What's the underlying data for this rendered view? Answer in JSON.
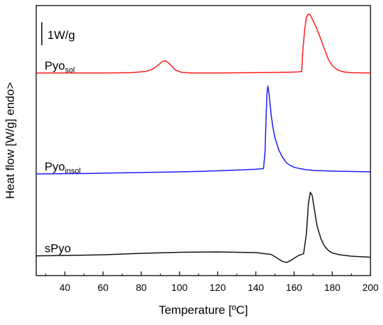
{
  "chart_data": {
    "type": "line",
    "xlabel": "Temperature [ºC]",
    "ylabel": "Heat flow [W/g]  endo>",
    "xlim": [
      25,
      200
    ],
    "xticks": [
      40,
      60,
      80,
      100,
      120,
      140,
      160,
      180,
      200
    ],
    "ylim": [
      0,
      7.65
    ],
    "scale_bar": {
      "label": "1W/g",
      "value": 1
    },
    "y_ticks_shown": false,
    "grid": false,
    "legend": "none",
    "series": [
      {
        "name": "Pyosol",
        "label_main": "Pyo",
        "label_sub": "sol",
        "color": "#ff1a1a",
        "x": [
          25,
          40,
          60,
          75,
          82,
          86,
          89,
          91,
          92.5,
          94,
          96,
          98,
          101,
          106,
          120,
          140,
          155,
          162,
          164,
          164.5,
          165.5,
          166.5,
          167.5,
          168.5,
          170,
          172,
          174,
          176,
          178,
          180,
          183,
          186,
          190,
          200
        ],
        "y": [
          5.74,
          5.74,
          5.74,
          5.75,
          5.78,
          5.85,
          5.97,
          6.06,
          6.09,
          6.04,
          5.93,
          5.82,
          5.76,
          5.74,
          5.74,
          5.75,
          5.76,
          5.77,
          5.78,
          6.3,
          6.95,
          7.32,
          7.41,
          7.38,
          7.22,
          6.98,
          6.7,
          6.4,
          6.12,
          5.95,
          5.82,
          5.77,
          5.75,
          5.74
        ]
      },
      {
        "name": "Pyoinsol",
        "label_main": "Pyo",
        "label_sub": "insol",
        "color": "#1a1aff",
        "x": [
          25,
          50,
          80,
          110,
          130,
          140,
          144,
          144.8,
          145.3,
          145.8,
          146.3,
          147,
          148,
          149,
          150,
          152,
          154,
          156,
          158,
          160,
          163,
          166,
          170,
          180,
          190,
          200
        ],
        "y": [
          2.88,
          2.89,
          2.92,
          2.95,
          2.99,
          3.01,
          3.03,
          3.5,
          4.4,
          5.15,
          5.37,
          5.1,
          4.55,
          4.18,
          3.9,
          3.56,
          3.35,
          3.2,
          3.12,
          3.07,
          3.03,
          3.0,
          2.98,
          2.96,
          2.95,
          2.94
        ]
      },
      {
        "name": "sPyo",
        "label_main": "sPyo",
        "label_sub": "",
        "color": "#111111",
        "x": [
          25,
          40,
          60,
          80,
          100,
          120,
          140,
          148,
          151,
          154,
          156,
          158,
          162,
          165,
          166.5,
          167.5,
          168.5,
          169.5,
          170.5,
          172,
          174,
          176,
          178,
          180,
          184,
          190,
          200
        ],
        "y": [
          0.56,
          0.57,
          0.59,
          0.63,
          0.66,
          0.67,
          0.65,
          0.6,
          0.5,
          0.4,
          0.37,
          0.42,
          0.56,
          0.62,
          1.2,
          2.05,
          2.36,
          2.27,
          1.92,
          1.42,
          1.05,
          0.83,
          0.71,
          0.64,
          0.59,
          0.55,
          0.52
        ]
      }
    ]
  }
}
